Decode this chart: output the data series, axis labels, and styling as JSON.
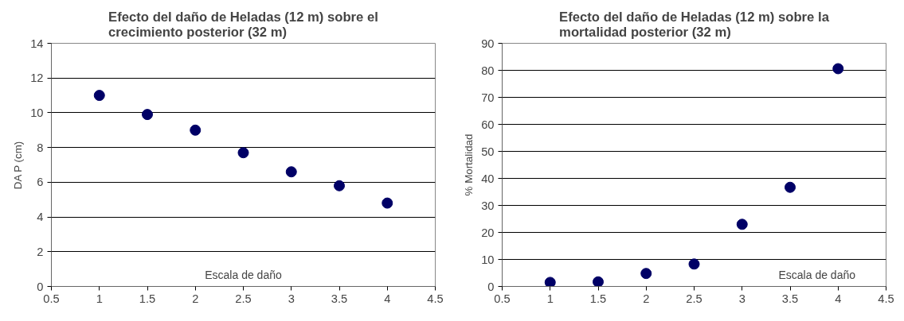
{
  "chart_data": [
    {
      "type": "scatter",
      "title": "Efecto del daño de Heladas (12 m) sobre el\ncrecimiento posterior (32 m)",
      "xlabel": "Escala de daño",
      "ylabel": "DA P (cm)",
      "x": [
        1,
        1.5,
        2,
        2.5,
        3,
        3.5,
        4
      ],
      "series": [
        {
          "color": "#000066",
          "values": [
            11.0,
            9.9,
            9.0,
            7.7,
            6.6,
            5.8,
            4.8
          ]
        }
      ],
      "xlim": [
        0.5,
        4.5
      ],
      "xticks": [
        0.5,
        1,
        1.5,
        2,
        2.5,
        3,
        3.5,
        4,
        4.5
      ],
      "ylim": [
        0,
        14
      ],
      "yticks": [
        0,
        2,
        4,
        6,
        8,
        10,
        12,
        14
      ],
      "grid": "y",
      "marker": "circle"
    },
    {
      "type": "scatter",
      "title": "Efecto del daño de Heladas (12 m) sobre la\nmortalidad posterior (32 m)",
      "xlabel": "Escala de daño",
      "ylabel": "% Mortalidad",
      "x": [
        1,
        1.5,
        2,
        2.5,
        3,
        3.5,
        4
      ],
      "series": [
        {
          "color": "#000066",
          "values": [
            1.5,
            1.7,
            4.8,
            8.3,
            23,
            36.7,
            80.6
          ]
        }
      ],
      "xlim": [
        0.5,
        4.5
      ],
      "xticks": [
        0.5,
        1,
        1.5,
        2,
        2.5,
        3,
        3.5,
        4,
        4.5
      ],
      "ylim": [
        0,
        90
      ],
      "yticks": [
        0,
        10,
        20,
        30,
        40,
        50,
        60,
        70,
        80,
        90
      ],
      "grid": "y",
      "marker": "circle"
    }
  ]
}
